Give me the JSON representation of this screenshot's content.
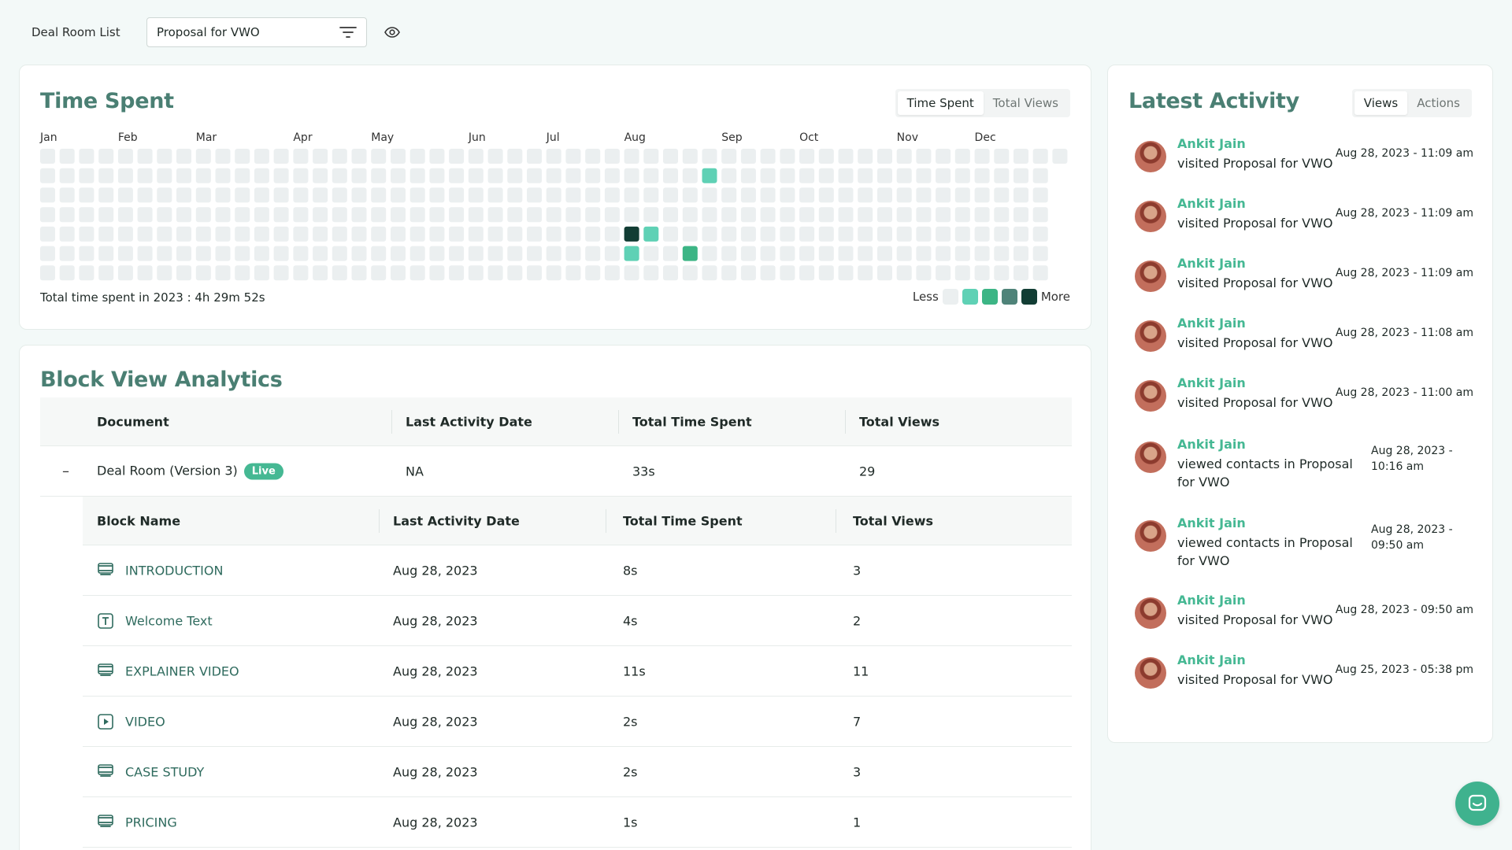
{
  "topbar": {
    "label": "Deal Room List",
    "selected": "Proposal for VWO"
  },
  "time_spent": {
    "title": "Time Spent",
    "tabs": [
      "Time Spent",
      "Total Views"
    ],
    "months": [
      "Jan",
      "Feb",
      "Mar",
      "Apr",
      "May",
      "Jun",
      "Jul",
      "Aug",
      "Sep",
      "Oct",
      "Nov",
      "Dec"
    ],
    "total_text": "Total time spent in 2023 : 4h 29m 52s",
    "legend_less": "Less",
    "legend_more": "More",
    "colors": {
      "empty": "#ebeff0",
      "l1": "#5fd1b5",
      "l2": "#3cb585",
      "l3": "#4f8379",
      "l4": "#123d34"
    },
    "active_cells": [
      {
        "week": 34,
        "day": 1,
        "level": "l1"
      },
      {
        "week": 30,
        "day": 4,
        "level": "l4"
      },
      {
        "week": 31,
        "day": 4,
        "level": "l1"
      },
      {
        "week": 30,
        "day": 5,
        "level": "l1"
      },
      {
        "week": 33,
        "day": 5,
        "level": "l2"
      }
    ]
  },
  "block_view": {
    "title": "Block View Analytics",
    "headers": [
      "Document",
      "Last Activity Date",
      "Total Time Spent",
      "Total Views"
    ],
    "document": {
      "name": "Deal Room (Version 3)",
      "badge": "Live",
      "last": "NA",
      "time": "33s",
      "views": "29"
    },
    "sub_headers": [
      "Block Name",
      "Last Activity Date",
      "Total Time Spent",
      "Total Views"
    ],
    "blocks": [
      {
        "icon": "section-icon",
        "name": "INTRODUCTION",
        "last": "Aug 28, 2023",
        "time": "8s",
        "views": "3"
      },
      {
        "icon": "text-icon",
        "name": "Welcome Text",
        "last": "Aug 28, 2023",
        "time": "4s",
        "views": "2"
      },
      {
        "icon": "section-icon",
        "name": "EXPLAINER VIDEO",
        "last": "Aug 28, 2023",
        "time": "11s",
        "views": "11"
      },
      {
        "icon": "play-icon",
        "name": "VIDEO",
        "last": "Aug 28, 2023",
        "time": "2s",
        "views": "7"
      },
      {
        "icon": "section-icon",
        "name": "CASE STUDY",
        "last": "Aug 28, 2023",
        "time": "2s",
        "views": "3"
      },
      {
        "icon": "section-icon",
        "name": "PRICING",
        "last": "Aug 28, 2023",
        "time": "1s",
        "views": "1"
      }
    ]
  },
  "latest_activity": {
    "title": "Latest Activity",
    "tabs": [
      "Views",
      "Actions"
    ],
    "items": [
      {
        "name": "Ankit Jain",
        "desc": "visited Proposal for VWO",
        "time": "Aug 28, 2023 - 11:09 am"
      },
      {
        "name": "Ankit Jain",
        "desc": "visited Proposal for VWO",
        "time": "Aug 28, 2023 - 11:09 am"
      },
      {
        "name": "Ankit Jain",
        "desc": "visited Proposal for VWO",
        "time": "Aug 28, 2023 - 11:09 am"
      },
      {
        "name": "Ankit Jain",
        "desc": "visited Proposal for VWO",
        "time": "Aug 28, 2023 - 11:08 am"
      },
      {
        "name": "Ankit Jain",
        "desc": "visited Proposal for VWO",
        "time": "Aug 28, 2023 - 11:00 am"
      },
      {
        "name": "Ankit Jain",
        "desc": "viewed contacts in Proposal for VWO",
        "time": "Aug 28, 2023 - 10:16 am"
      },
      {
        "name": "Ankit Jain",
        "desc": "viewed contacts in Proposal for VWO",
        "time": "Aug 28, 2023 - 09:50 am"
      },
      {
        "name": "Ankit Jain",
        "desc": "visited Proposal for VWO",
        "time": "Aug 28, 2023 - 09:50 am"
      },
      {
        "name": "Ankit Jain",
        "desc": "visited Proposal for VWO",
        "time": "Aug 25, 2023 - 05:38 pm"
      }
    ]
  }
}
